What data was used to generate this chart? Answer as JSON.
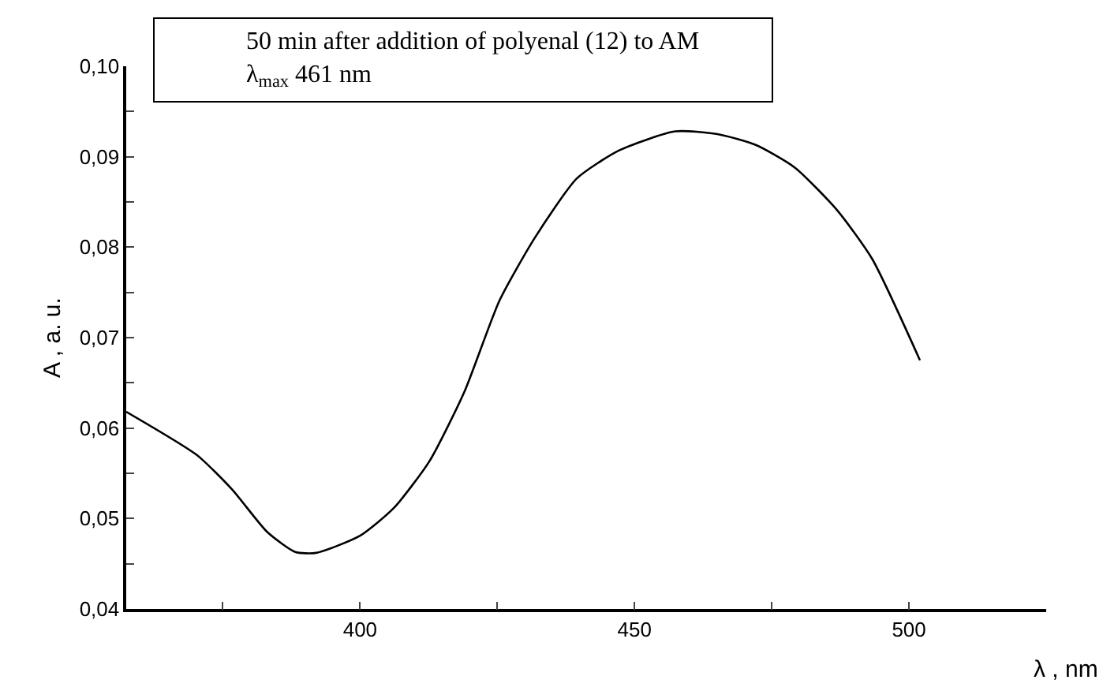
{
  "chart_data": {
    "type": "line",
    "xlabel": "λ , nm",
    "ylabel": "A , a. u.",
    "annotations": [
      "50 min after addition of polyenal (12) to AM",
      "λ$_{max}$ 461 nm"
    ],
    "x": [
      357.4,
      370.3,
      376.7,
      383.1,
      388.2,
      392,
      400,
      406.2,
      412.6,
      419,
      425.4,
      431.8,
      439.5,
      447.2,
      457.4,
      465.1,
      472.1,
      479.2,
      486.9,
      493.3,
      502
    ],
    "series": [
      {
        "color": "#000000",
        "values": [
          0.0618,
          0.057,
          0.0532,
          0.0485,
          0.0463,
          0.0462,
          0.0481,
          0.0512,
          0.0563,
          0.064,
          0.0741,
          0.081,
          0.0876,
          0.0907,
          0.0928,
          0.0925,
          0.0913,
          0.0888,
          0.0841,
          0.0787,
          0.0675
        ]
      }
    ],
    "xlim": [
      357.4,
      525
    ],
    "xticks": [
      {
        "value": 375,
        "label": null
      },
      400,
      {
        "value": 425,
        "label": null
      },
      450,
      {
        "value": 475,
        "label": null
      },
      500
    ],
    "ylim": [
      0.04,
      0.1
    ],
    "yticks": [
      {
        "value": 0.04,
        "label": "0,04"
      },
      {
        "value": 0.045,
        "label": null
      },
      {
        "value": 0.05,
        "label": "0,05"
      },
      {
        "value": 0.055,
        "label": null
      },
      {
        "value": 0.06,
        "label": "0,06"
      },
      {
        "value": 0.065,
        "label": null
      },
      {
        "value": 0.07,
        "label": "0,07"
      },
      {
        "value": 0.075,
        "label": null
      },
      {
        "value": 0.08,
        "label": "0,08"
      },
      {
        "value": 0.085,
        "label": null
      },
      {
        "value": 0.09,
        "label": "0,09"
      },
      {
        "value": 0.095,
        "label": null
      },
      {
        "value": 0.1,
        "label": "0,10"
      }
    ],
    "marker": "none",
    "line_style": "solid"
  }
}
